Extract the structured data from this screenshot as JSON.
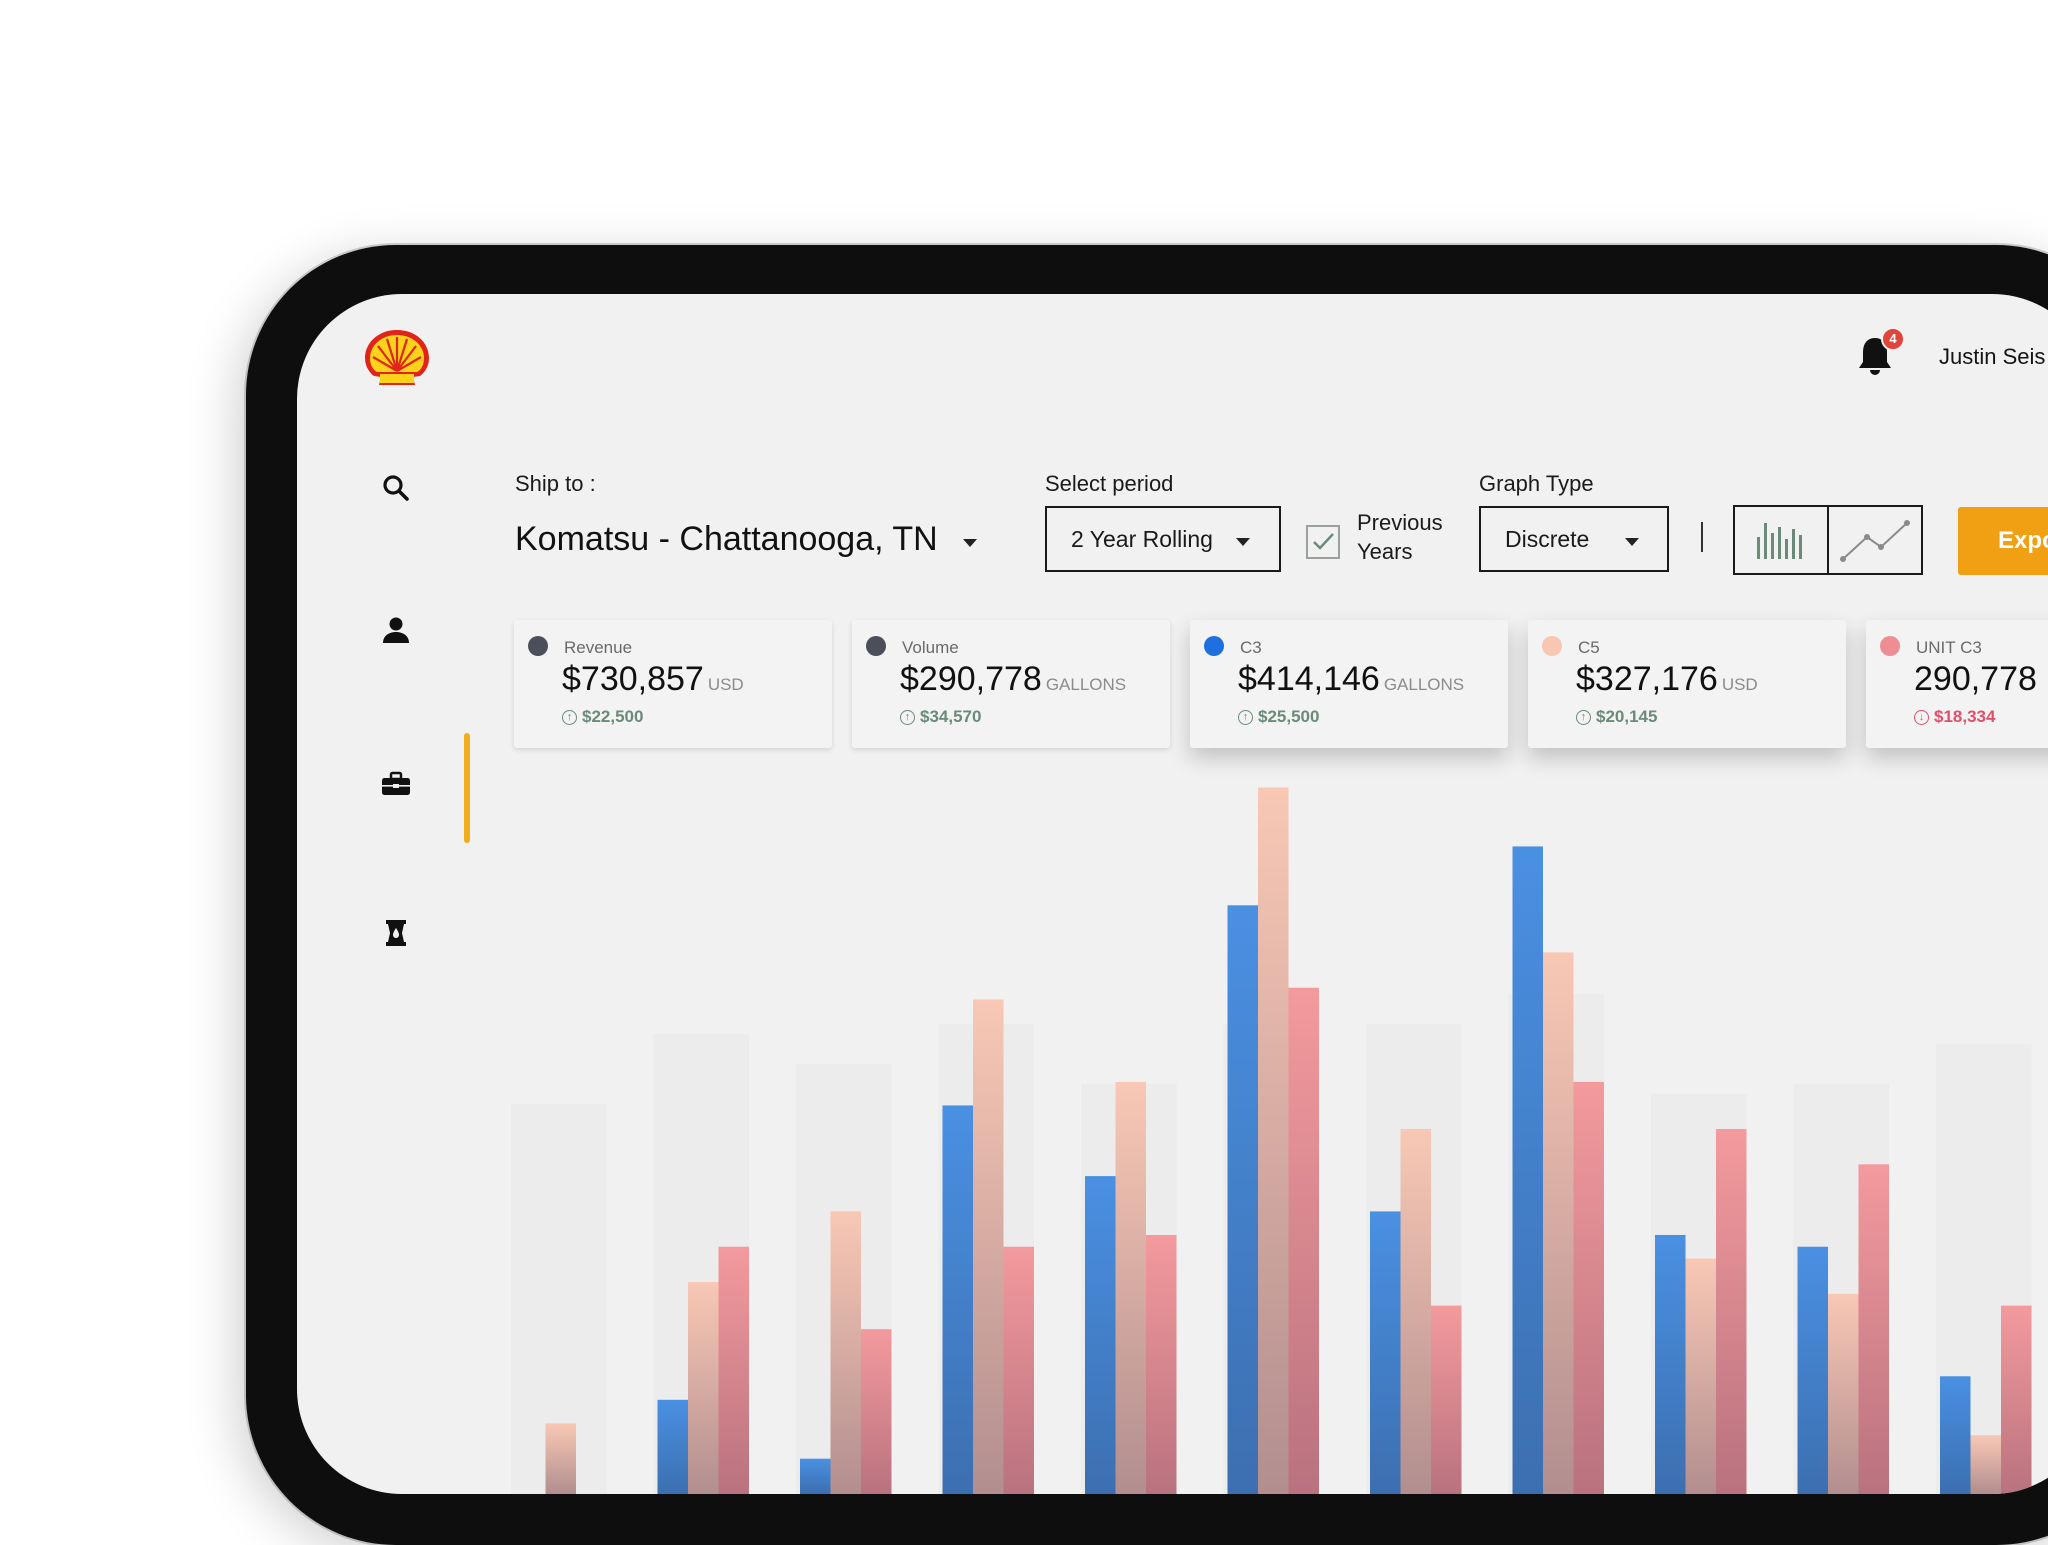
{
  "header": {
    "logo_icon": "shell-logo-icon",
    "notification_count": "4",
    "user_name": "Justin Seis"
  },
  "sidebar": {
    "items": [
      {
        "icon": "search-icon"
      },
      {
        "icon": "user-icon"
      },
      {
        "icon": "briefcase-icon",
        "active": true
      },
      {
        "icon": "fuel-barrel-icon"
      }
    ],
    "accent": "#f0ad1c"
  },
  "filters": {
    "ship_to_label": "Ship to :",
    "ship_to_value": "Komatsu - Chattanooga, TN",
    "period_label": "Select period",
    "period_value": "2 Year Rolling",
    "previous_years_line1": "Previous",
    "previous_years_line2": "Years",
    "previous_years_checked": true,
    "graph_type_label": "Graph Type",
    "graph_type_value": "Discrete",
    "export_label": "Expo"
  },
  "cards": [
    {
      "name": "Revenue",
      "value": "$730,857",
      "unit": "USD",
      "delta": "$22,500",
      "direction": "up",
      "dot_color": "#4a4f5a"
    },
    {
      "name": "Volume",
      "value": "$290,778",
      "unit": "GALLONS",
      "delta": "$34,570",
      "direction": "up",
      "dot_color": "#4a4f5a"
    },
    {
      "name": "C3",
      "value": "$414,146",
      "unit": "GALLONS",
      "delta": "$25,500",
      "direction": "up",
      "dot_color": "#1e6fe0"
    },
    {
      "name": "C5",
      "value": "$327,176",
      "unit": "USD",
      "delta": "$20,145",
      "direction": "up",
      "dot_color": "#f8c7b4"
    },
    {
      "name": "UNIT C3",
      "value": "290,778",
      "unit": "",
      "delta": "$18,334",
      "direction": "down",
      "dot_color": "#ee8d93"
    }
  ],
  "colors": {
    "c3": "#4a90e2",
    "c5": "#f7c6b3",
    "unit_c3": "#f09498",
    "delta_up": "#6b8a78",
    "delta_down": "#e0506a"
  },
  "chart_data": {
    "type": "bar",
    "categories": [
      "",
      "",
      "",
      "",
      "",
      "",
      "",
      "",
      "",
      "",
      "",
      ""
    ],
    "series": [
      {
        "name": "C3",
        "values": [
          0,
          8,
          3,
          33,
          27,
          50,
          24,
          55,
          22,
          21,
          10,
          0
        ]
      },
      {
        "name": "C5",
        "values": [
          6,
          18,
          24,
          42,
          35,
          60,
          31,
          46,
          20,
          17,
          5,
          0
        ]
      },
      {
        "name": "UNIT C3",
        "values": [
          0,
          21,
          14,
          21,
          22,
          43,
          16,
          35,
          31,
          28,
          16,
          0
        ]
      }
    ],
    "ylim": [
      0,
      62
    ]
  }
}
